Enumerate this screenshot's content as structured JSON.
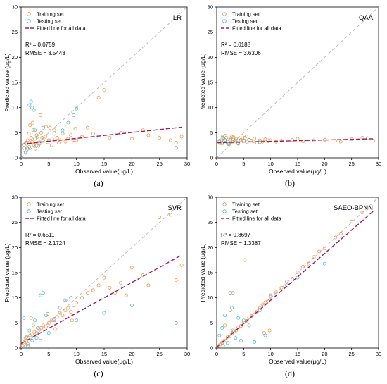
{
  "colors": {
    "training": "#f28a30",
    "testing": "#3bb6d9",
    "fit": "#a3195b",
    "identity": "#b4b4b4",
    "axis": "#000000"
  },
  "legend": {
    "training": "Training set",
    "testing": "Testing set",
    "fit": "Fitted line for all data"
  },
  "axis_labels": {
    "x": "Observed value(μg/L)",
    "y": "Predicted value (μg/L)"
  },
  "chart_data": [
    {
      "type": "scatter",
      "panel_label": "(a)",
      "model": "LR",
      "r2": "R² = 0.0759",
      "rmse": "RMSE = 3.5443",
      "xlabel": "Observed value(μg/L)",
      "ylabel": "Predicted value (μg/L)",
      "xlim": [
        0,
        30
      ],
      "ylim": [
        0,
        30
      ],
      "xticks": [
        0,
        5,
        10,
        15,
        20,
        25,
        30
      ],
      "yticks": [
        0,
        5,
        10,
        15,
        20,
        25,
        30
      ],
      "fit_line": {
        "x": [
          0,
          29
        ],
        "y": [
          2.7,
          6.1
        ]
      },
      "identity_line": true,
      "series": [
        {
          "name": "Training set",
          "x": [
            0.5,
            0.8,
            1.0,
            1.2,
            1.5,
            1.8,
            2.0,
            2.3,
            2.5,
            2.8,
            3.0,
            3.3,
            3.6,
            4.0,
            4.4,
            4.8,
            5.2,
            5.6,
            6.0,
            6.5,
            7.0,
            7.5,
            8.0,
            8.5,
            9.0,
            9.5,
            10,
            11,
            12,
            13,
            14,
            15,
            16,
            18,
            20,
            22,
            23,
            25,
            27,
            28,
            29,
            0.6,
            1.1,
            1.6,
            2.1,
            2.6,
            3.1,
            3.8,
            4.5,
            5.5,
            6.8,
            9.8,
            3.5,
            2.2,
            1.4
          ],
          "y": [
            2.5,
            3.0,
            2.8,
            3.5,
            2.2,
            4.0,
            3.2,
            2.6,
            3.8,
            4.5,
            3.0,
            2.8,
            5.0,
            3.5,
            4.2,
            3.1,
            6.0,
            3.8,
            5.5,
            4.0,
            3.5,
            4.8,
            3.2,
            3.8,
            4.5,
            3.0,
            3.5,
            4.2,
            6.0,
            4.8,
            12.0,
            13.5,
            4.0,
            5.0,
            3.8,
            5.5,
            4.5,
            4.0,
            3.5,
            3.0,
            4.2,
            1.5,
            2.0,
            6.5,
            7.0,
            1.8,
            2.4,
            4.0,
            6.2,
            2.5,
            3.0,
            5.8,
            8.5,
            5.5,
            4.8
          ]
        },
        {
          "name": "Testing set",
          "x": [
            1.5,
            1.8,
            2.0,
            2.3,
            0.5,
            1.0,
            2.5,
            3.0,
            4.0,
            5.0,
            6.0,
            7.5,
            8.5,
            9.5,
            10,
            0.8,
            1.2,
            2.8,
            3.5,
            28
          ],
          "y": [
            10.5,
            11.2,
            10.0,
            9.5,
            2.0,
            3.0,
            5.5,
            4.2,
            6.0,
            3.5,
            4.8,
            5.5,
            7.0,
            8.5,
            9.8,
            1.0,
            1.8,
            2.5,
            3.0,
            2.0
          ]
        }
      ]
    },
    {
      "type": "scatter",
      "panel_label": "(b)",
      "model": "QAA",
      "r2": "R² = 0.0188",
      "rmse": "RMSE = 3.6306",
      "xlabel": "Observed value(μg/L)",
      "ylabel": "Predicted value (μg/L)",
      "xlim": [
        0,
        30
      ],
      "ylim": [
        0,
        30
      ],
      "xticks": [
        0,
        5,
        10,
        15,
        20,
        25,
        30
      ],
      "yticks": [
        0,
        5,
        10,
        15,
        20,
        25,
        30
      ],
      "fit_line": {
        "x": [
          0,
          29
        ],
        "y": [
          3.0,
          3.8
        ]
      },
      "identity_line": true,
      "series": [
        {
          "name": "Training set",
          "x": [
            0.5,
            0.8,
            1.0,
            1.2,
            1.5,
            1.8,
            2.0,
            2.3,
            2.5,
            2.8,
            3.0,
            3.3,
            3.6,
            4.0,
            4.4,
            4.8,
            5.2,
            5.6,
            6.0,
            6.5,
            7.0,
            7.5,
            8.0,
            8.5,
            9.0,
            9.5,
            10,
            11,
            12,
            14,
            15,
            16,
            18,
            20,
            22,
            23,
            25,
            27,
            28,
            29,
            0.6,
            1.1,
            1.6,
            2.1,
            2.6,
            3.1,
            3.8,
            4.5,
            5.5,
            6.8
          ],
          "y": [
            3.2,
            3.5,
            2.8,
            3.8,
            3.0,
            4.0,
            3.3,
            2.9,
            3.6,
            4.2,
            3.1,
            3.4,
            3.8,
            2.8,
            3.5,
            3.9,
            4.0,
            3.2,
            3.6,
            3.4,
            3.8,
            3.0,
            3.5,
            3.2,
            3.7,
            3.3,
            3.5,
            3.2,
            3.4,
            3.6,
            3.8,
            3.3,
            3.5,
            3.6,
            3.4,
            3.2,
            3.7,
            4.0,
            3.9,
            3.4,
            2.9,
            4.2,
            4.4,
            2.7,
            3.9,
            4.1,
            3.0,
            3.6,
            4.3,
            3.3
          ]
        },
        {
          "name": "Testing set",
          "x": [
            0.5,
            1.0,
            1.5,
            2.0,
            2.5,
            3.0,
            3.5,
            4.0,
            5.0,
            6.0,
            8.0,
            9.5,
            1.2,
            2.2,
            28
          ],
          "y": [
            3.4,
            3.0,
            3.6,
            3.2,
            3.8,
            3.3,
            3.5,
            2.9,
            3.4,
            3.6,
            3.1,
            3.5,
            4.0,
            2.8,
            3.9
          ]
        }
      ]
    },
    {
      "type": "scatter",
      "panel_label": "(c)",
      "model": "SVR",
      "r2": "R² = 0.6511",
      "rmse": "RMSE = 2.1724",
      "xlabel": "Observed value(μg/L)",
      "ylabel": "Predicted value (μg/L)",
      "xlim": [
        0,
        30
      ],
      "ylim": [
        0,
        30
      ],
      "xticks": [
        0,
        5,
        10,
        15,
        20,
        25,
        30
      ],
      "yticks": [
        0,
        5,
        10,
        15,
        20,
        25,
        30
      ],
      "fit_line": {
        "x": [
          0,
          29
        ],
        "y": [
          0.9,
          18.5
        ]
      },
      "identity_line": true,
      "series": [
        {
          "name": "Training set",
          "x": [
            0.3,
            0.6,
            1.0,
            1.3,
            1.6,
            2.0,
            2.4,
            2.8,
            3.2,
            3.6,
            4.0,
            4.5,
            5.0,
            5.5,
            6.0,
            6.5,
            7.0,
            7.5,
            8.0,
            8.5,
            9.0,
            9.5,
            10,
            11,
            12,
            13,
            14,
            15,
            16,
            17,
            18,
            19,
            20,
            22,
            23,
            25,
            27,
            28,
            29,
            1.2,
            2.2,
            3.5,
            4.8,
            6.2,
            7.8,
            9.2,
            0.8,
            1.8
          ],
          "y": [
            0.5,
            1.2,
            1.5,
            2.0,
            2.5,
            2.8,
            3.2,
            3.0,
            3.8,
            4.0,
            4.5,
            4.2,
            5.0,
            5.5,
            5.8,
            6.2,
            7.0,
            6.5,
            7.5,
            8.0,
            7.2,
            8.5,
            9.0,
            10.0,
            11.0,
            11.5,
            12.5,
            14.0,
            12.0,
            11.0,
            13.0,
            10.5,
            16.0,
            14.5,
            12.5,
            26.0,
            26.5,
            13.5,
            16.5,
            0.8,
            4.5,
            1.5,
            6.8,
            3.8,
            9.5,
            5.5,
            2.0,
            6.0
          ]
        },
        {
          "name": "Testing set",
          "x": [
            0.5,
            1.0,
            1.5,
            2.0,
            2.5,
            3.0,
            3.5,
            4.0,
            4.5,
            5.0,
            6.0,
            7.0,
            8.0,
            9.0,
            10,
            15,
            20,
            28,
            1.2,
            2.8
          ],
          "y": [
            6.0,
            2.2,
            3.5,
            1.5,
            5.5,
            4.0,
            10.5,
            11.0,
            6.5,
            3.0,
            5.5,
            8.0,
            9.5,
            10.0,
            5.5,
            7.0,
            8.5,
            5.0,
            0.5,
            2.0
          ]
        }
      ]
    },
    {
      "type": "scatter",
      "panel_label": "(d)",
      "model": "SAEO-BPNN",
      "r2": "R² = 0.8697",
      "rmse": "RMSE = 1.3387",
      "xlabel": "Observed value(μg/L)",
      "ylabel": "Predicted value (μg/L)",
      "xlim": [
        0,
        30
      ],
      "ylim": [
        0,
        30
      ],
      "xticks": [
        0,
        5,
        10,
        15,
        20,
        25,
        30
      ],
      "yticks": [
        0,
        5,
        10,
        15,
        20,
        25,
        30
      ],
      "fit_line": {
        "x": [
          0,
          29
        ],
        "y": [
          0.2,
          27.2
        ]
      },
      "identity_line": true,
      "series": [
        {
          "name": "Training set",
          "x": [
            0.3,
            0.6,
            1.0,
            1.3,
            1.6,
            2.0,
            2.4,
            2.8,
            3.2,
            3.6,
            4.0,
            4.5,
            5.0,
            5.5,
            6.0,
            6.5,
            7.0,
            7.5,
            8.0,
            8.5,
            9.0,
            9.5,
            10,
            11,
            12,
            13,
            14,
            15,
            16,
            17,
            18,
            19,
            20,
            22,
            23,
            25,
            27,
            28,
            3.0,
            5.2,
            2.5,
            8.8,
            9.8,
            1.5
          ],
          "y": [
            0.4,
            0.7,
            1.1,
            1.4,
            1.5,
            2.2,
            2.3,
            2.9,
            3.3,
            3.5,
            4.1,
            4.4,
            5.1,
            5.4,
            6.1,
            6.4,
            7.1,
            7.3,
            8.0,
            8.6,
            9.1,
            9.4,
            10.2,
            11.1,
            12.0,
            13.2,
            13.8,
            15.1,
            16.2,
            16.8,
            18.1,
            19.2,
            19.8,
            22.0,
            22.8,
            25.2,
            27.0,
            28.0,
            11.0,
            17.5,
            7.5,
            3.0,
            3.5,
            4.5
          ]
        },
        {
          "name": "Testing set",
          "x": [
            0.5,
            1.0,
            1.5,
            2.0,
            2.5,
            3.0,
            3.5,
            4.0,
            4.5,
            5.0,
            6.0,
            7.0,
            8.0,
            9.0,
            10,
            13,
            15,
            20,
            1.2,
            2.8
          ],
          "y": [
            2.5,
            4.0,
            6.5,
            1.0,
            11.0,
            3.5,
            2.0,
            6.0,
            1.5,
            5.5,
            4.5,
            1.2,
            7.5,
            2.5,
            10.5,
            12.5,
            14.0,
            16.8,
            0.5,
            8.0
          ]
        }
      ]
    }
  ]
}
